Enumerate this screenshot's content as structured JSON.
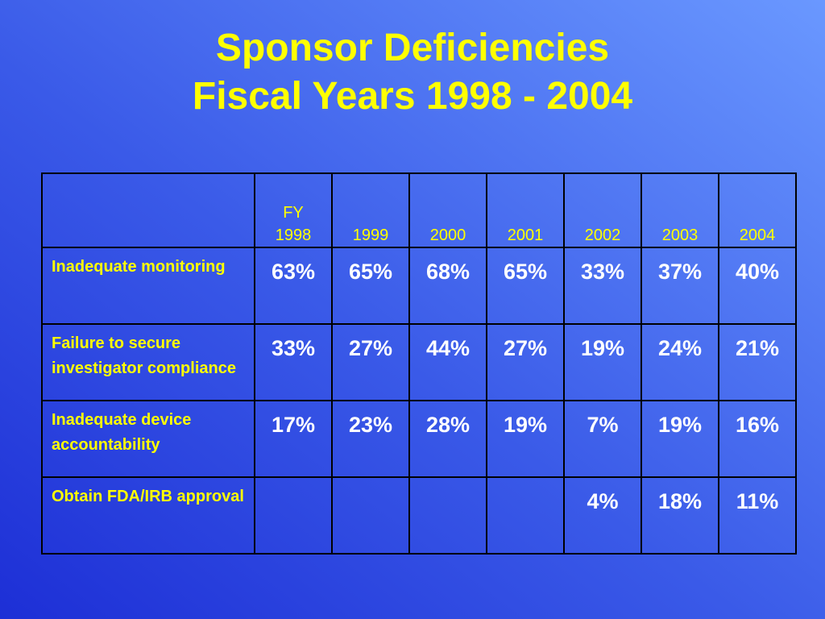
{
  "slide": {
    "title_line1": "Sponsor Deficiencies",
    "title_line2": "Fiscal Years 1998 - 2004"
  },
  "chart_data": {
    "type": "table",
    "title": "Sponsor Deficiencies Fiscal Years 1998 - 2004",
    "columns": [
      {
        "line1": "FY",
        "line2": "1998"
      },
      {
        "line1": "",
        "line2": "1999"
      },
      {
        "line1": "",
        "line2": "2000"
      },
      {
        "line1": "",
        "line2": "2001"
      },
      {
        "line1": "",
        "line2": "2002"
      },
      {
        "line1": "",
        "line2": "2003"
      },
      {
        "line1": "",
        "line2": "2004"
      }
    ],
    "rows": [
      {
        "label": "Inadequate monitoring",
        "cells": [
          "63%",
          "65%",
          "68%",
          "65%",
          "33%",
          "37%",
          "40%"
        ]
      },
      {
        "label": "Failure to secure investigator compliance",
        "cells": [
          "33%",
          "27%",
          "44%",
          "27%",
          "19%",
          "24%",
          "21%"
        ]
      },
      {
        "label": "Inadequate device accountability",
        "cells": [
          "17%",
          "23%",
          "28%",
          "19%",
          "7%",
          "19%",
          "16%"
        ]
      },
      {
        "label": "Obtain FDA/IRB approval",
        "cells": [
          "",
          "",
          "",
          "",
          "4%",
          "18%",
          "11%"
        ]
      }
    ]
  }
}
